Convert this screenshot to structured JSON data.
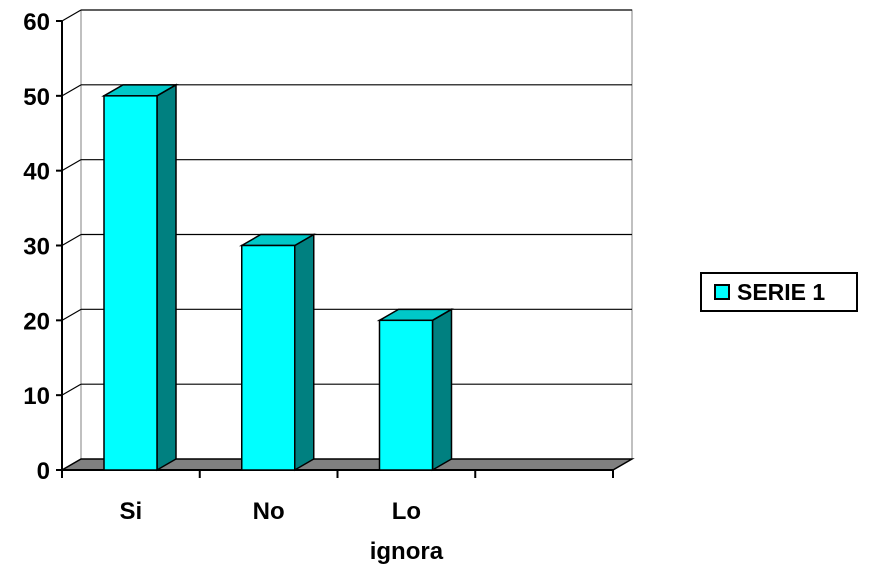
{
  "chart_data": {
    "type": "bar",
    "style": "3d-column",
    "categories": [
      "Si",
      "No",
      "Lo ignora",
      ""
    ],
    "series": [
      {
        "name": "SERIE 1",
        "values": [
          50,
          30,
          20,
          null
        ]
      }
    ],
    "ylim": [
      0,
      60
    ],
    "yticks": [
      0,
      10,
      20,
      30,
      40,
      50,
      60
    ],
    "grid": true,
    "legend": "right",
    "colors": {
      "bar_front": "#00FFFF",
      "bar_side": "#008080",
      "bar_top": "#00C8C8",
      "floor": "#808080",
      "gridline": "#000000"
    }
  }
}
